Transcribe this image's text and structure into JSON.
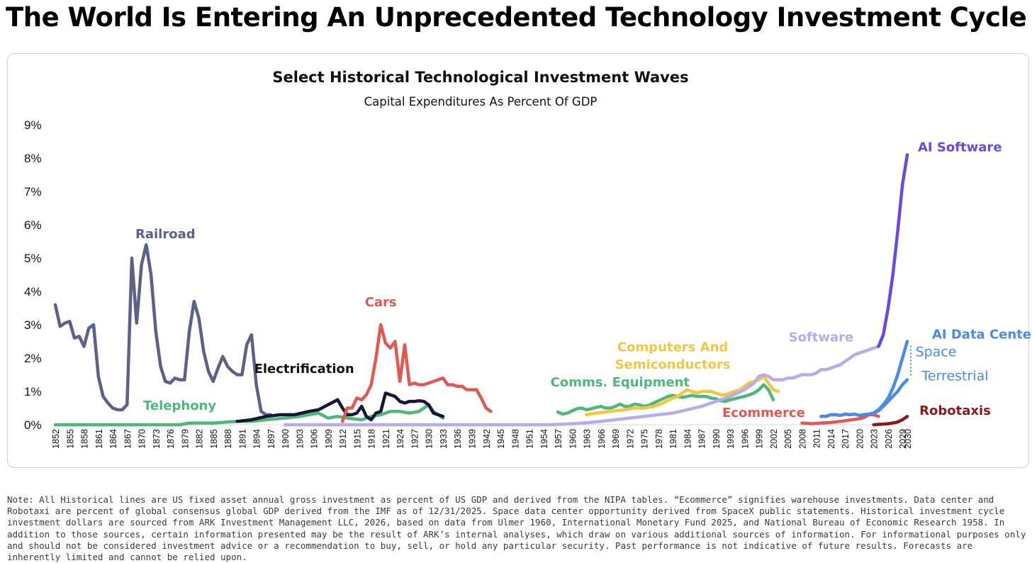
{
  "headline": "The World Is Entering An Unprecedented Technology Investment Cycle",
  "note": "Note: All Historical lines are US fixed asset annual gross investment as percent of US GDP and derived from the NIPA tables. “Ecommerce” signifies warehouse investments. Data center and Robotaxi are percent of global consensus global GDP derived from the IMF as of 12/31/2025. Space data center opportunity derived from SpaceX public statements. Historical investment cycle investment dollars are sourced from ARK Investment Management LLC, 2026, based on data from Ulmer 1960, International Monetary Fund 2025, and National Bureau of Economic Research 1958. In addition to those sources, certain information presented may be the result of ARK’s internal analyses, which draw on various additional sources of information. For informational purposes only and should not be considered investment advice or a recommendation to buy, sell, or hold any particular security. Past performance is not indicative of future results. Forecasts are inherently limited and cannot be relied upon.",
  "chart_data": {
    "type": "line",
    "title": "Select Historical Technological Investment Waves",
    "subtitle": "Capital Expenditures As Percent Of GDP",
    "xlabel": "",
    "ylabel": "",
    "xlim": [
      1852,
      2030
    ],
    "ylim": [
      0,
      9
    ],
    "y_unit": "%",
    "y_ticks": [
      0,
      1,
      2,
      3,
      4,
      5,
      6,
      7,
      8,
      9
    ],
    "x_ticks": [
      1852,
      1855,
      1858,
      1861,
      1864,
      1867,
      1870,
      1873,
      1876,
      1879,
      1882,
      1885,
      1888,
      1891,
      1894,
      1897,
      1900,
      1903,
      1906,
      1909,
      1912,
      1915,
      1918,
      1921,
      1924,
      1927,
      1930,
      1933,
      1936,
      1939,
      1942,
      1945,
      1948,
      1951,
      1954,
      1957,
      1960,
      1963,
      1966,
      1969,
      1972,
      1975,
      1978,
      1981,
      1984,
      1987,
      1990,
      1993,
      1996,
      1999,
      2002,
      2005,
      2008,
      2011,
      2014,
      2017,
      2020,
      2023,
      2026,
      2029,
      2030
    ],
    "grid": false,
    "legend": "none",
    "series": [
      {
        "name": "Railroad",
        "color": "#5b6188",
        "x": [
          1852,
          1853,
          1854,
          1855,
          1856,
          1857,
          1858,
          1859,
          1860,
          1861,
          1862,
          1863,
          1864,
          1865,
          1866,
          1867,
          1868,
          1869,
          1870,
          1871,
          1872,
          1873,
          1874,
          1875,
          1876,
          1877,
          1878,
          1879,
          1880,
          1881,
          1882,
          1883,
          1884,
          1885,
          1886,
          1887,
          1888,
          1889,
          1890,
          1891,
          1892,
          1893,
          1894,
          1895,
          1896,
          1897
        ],
        "values": [
          3.6,
          2.95,
          3.05,
          3.1,
          2.6,
          2.65,
          2.35,
          2.9,
          3.0,
          1.45,
          0.85,
          0.65,
          0.5,
          0.45,
          0.45,
          0.6,
          5.0,
          3.05,
          4.8,
          5.4,
          4.5,
          2.8,
          1.75,
          1.3,
          1.25,
          1.4,
          1.35,
          1.35,
          2.8,
          3.7,
          3.2,
          2.2,
          1.6,
          1.3,
          1.7,
          2.05,
          1.75,
          1.6,
          1.5,
          1.5,
          2.4,
          2.7,
          1.2,
          0.4,
          0.3,
          0.3
        ]
      },
      {
        "name": "Telephony",
        "color": "#4db87a",
        "x": [
          1852,
          1860,
          1870,
          1878,
          1880,
          1885,
          1890,
          1893,
          1896,
          1900,
          1903,
          1905,
          1907,
          1909,
          1911,
          1913,
          1916,
          1918,
          1920,
          1922,
          1924,
          1926,
          1928,
          1929,
          1930,
          1931,
          1932,
          1933
        ],
        "values": [
          0,
          0,
          0,
          0,
          0.05,
          0.05,
          0.1,
          0.1,
          0.15,
          0.2,
          0.25,
          0.3,
          0.35,
          0.2,
          0.25,
          0.2,
          0.15,
          0.25,
          0.3,
          0.4,
          0.4,
          0.35,
          0.4,
          0.5,
          0.6,
          0.4,
          0.3,
          0.2
        ]
      },
      {
        "name": "Electrification",
        "color": "#151535",
        "x": [
          1890,
          1893,
          1896,
          1899,
          1902,
          1905,
          1907,
          1909,
          1911,
          1912,
          1913,
          1914,
          1915,
          1916,
          1917,
          1918,
          1919,
          1920,
          1921,
          1922,
          1923,
          1924,
          1925,
          1926,
          1927,
          1928,
          1929,
          1930,
          1931,
          1932,
          1933
        ],
        "values": [
          0.1,
          0.15,
          0.25,
          0.3,
          0.3,
          0.4,
          0.45,
          0.6,
          0.75,
          0.5,
          0.3,
          0.3,
          0.35,
          0.55,
          0.25,
          0.15,
          0.35,
          0.4,
          0.95,
          0.9,
          0.85,
          0.7,
          0.65,
          0.7,
          0.7,
          0.72,
          0.7,
          0.6,
          0.35,
          0.3,
          0.25
        ]
      },
      {
        "name": "Cars",
        "color": "#e05a52",
        "x": [
          1912,
          1913,
          1914,
          1915,
          1916,
          1917,
          1918,
          1919,
          1920,
          1921,
          1922,
          1923,
          1924,
          1925,
          1926,
          1927,
          1928,
          1929,
          1930,
          1931,
          1932,
          1933,
          1934,
          1935,
          1936,
          1937,
          1938,
          1939,
          1940,
          1941,
          1942,
          1943
        ],
        "values": [
          0.1,
          0.5,
          0.5,
          0.8,
          0.75,
          0.9,
          1.2,
          2.0,
          3.0,
          2.45,
          2.3,
          2.5,
          1.3,
          2.4,
          1.2,
          1.25,
          1.2,
          1.2,
          1.25,
          1.3,
          1.35,
          1.4,
          1.2,
          1.2,
          1.15,
          1.15,
          1.05,
          1.05,
          1.05,
          0.8,
          0.5,
          0.4
        ]
      },
      {
        "name": "Comms. Equipment",
        "color": "#4db87a",
        "x": [
          1957,
          1958,
          1959,
          1960,
          1961,
          1962,
          1963,
          1964,
          1965,
          1966,
          1967,
          1968,
          1969,
          1970,
          1971,
          1972,
          1973,
          1974,
          1975,
          1976,
          1977,
          1978,
          1979,
          1980,
          1981,
          1982,
          1983,
          1984,
          1985,
          1986,
          1987,
          1988,
          1989,
          1990,
          1991,
          1992,
          1993,
          1994,
          1995,
          1996,
          1997,
          1998,
          1999,
          2000,
          2001,
          2002
        ],
        "values": [
          0.38,
          0.32,
          0.35,
          0.42,
          0.48,
          0.5,
          0.45,
          0.48,
          0.52,
          0.55,
          0.5,
          0.5,
          0.55,
          0.62,
          0.55,
          0.55,
          0.62,
          0.6,
          0.55,
          0.58,
          0.65,
          0.72,
          0.78,
          0.85,
          0.88,
          0.85,
          0.82,
          0.85,
          0.88,
          0.85,
          0.85,
          0.85,
          0.8,
          0.78,
          0.72,
          0.7,
          0.75,
          0.78,
          0.82,
          0.85,
          0.9,
          0.95,
          1.05,
          1.2,
          1.05,
          0.75
        ]
      },
      {
        "name": "Computers And Semiconductors",
        "color": "#f2c643",
        "x": [
          1963,
          1965,
          1967,
          1969,
          1971,
          1973,
          1975,
          1977,
          1979,
          1981,
          1982,
          1983,
          1984,
          1985,
          1986,
          1987,
          1988,
          1989,
          1990,
          1991,
          1992,
          1993,
          1994,
          1995,
          1996,
          1997,
          1998,
          1999,
          2000,
          2001,
          2002,
          2003
        ],
        "values": [
          0.3,
          0.35,
          0.38,
          0.42,
          0.45,
          0.5,
          0.5,
          0.55,
          0.65,
          0.8,
          0.85,
          0.95,
          1.05,
          1.0,
          0.95,
          1.0,
          1.0,
          1.0,
          0.95,
          0.9,
          0.9,
          0.95,
          1.0,
          1.05,
          1.15,
          1.25,
          1.3,
          1.35,
          1.45,
          1.25,
          1.05,
          1.0
        ]
      },
      {
        "name": "Software",
        "color": "#b7aaef",
        "x": [
          1900,
          1920,
          1940,
          1955,
          1960,
          1963,
          1966,
          1969,
          1972,
          1975,
          1978,
          1981,
          1984,
          1987,
          1990,
          1993,
          1996,
          1998,
          1999,
          2000,
          2001,
          2002,
          2003,
          2004,
          2005,
          2006,
          2007,
          2008,
          2009,
          2010,
          2011,
          2012,
          2013,
          2014,
          2015,
          2016,
          2017,
          2018,
          2019,
          2020,
          2021,
          2022,
          2023,
          2024
        ],
        "values": [
          0,
          0,
          0,
          0,
          0.03,
          0.06,
          0.1,
          0.15,
          0.2,
          0.25,
          0.3,
          0.35,
          0.45,
          0.55,
          0.7,
          0.85,
          1.05,
          1.25,
          1.45,
          1.5,
          1.45,
          1.35,
          1.35,
          1.35,
          1.4,
          1.4,
          1.45,
          1.5,
          1.5,
          1.5,
          1.55,
          1.65,
          1.65,
          1.7,
          1.75,
          1.8,
          1.9,
          2.0,
          2.1,
          2.15,
          2.2,
          2.25,
          2.3,
          2.35
        ]
      },
      {
        "name": "Ecommerce",
        "color": "#e05a52",
        "x": [
          2008,
          2009,
          2010,
          2011,
          2012,
          2013,
          2014,
          2015,
          2016,
          2017,
          2018,
          2019,
          2020,
          2021,
          2022,
          2023,
          2024
        ],
        "values": [
          0.05,
          0.04,
          0.03,
          0.04,
          0.05,
          0.06,
          0.07,
          0.08,
          0.1,
          0.12,
          0.14,
          0.16,
          0.18,
          0.22,
          0.3,
          0.3,
          0.25
        ]
      },
      {
        "name": "AI Software",
        "color": "#6a48e8",
        "x": [
          2024,
          2025,
          2026,
          2027,
          2028,
          2029,
          2030
        ],
        "values": [
          2.35,
          2.7,
          3.5,
          4.5,
          5.8,
          7.2,
          8.1
        ]
      },
      {
        "name": "AI Data Centers Space",
        "color": "#4a8ae8",
        "x": [
          2012,
          2013,
          2014,
          2015,
          2016,
          2017,
          2018,
          2019,
          2020,
          2021,
          2022,
          2023,
          2024,
          2025,
          2026,
          2027,
          2028,
          2029,
          2030
        ],
        "values": [
          0.25,
          0.25,
          0.3,
          0.3,
          0.28,
          0.32,
          0.3,
          0.32,
          0.28,
          0.3,
          0.32,
          0.35,
          0.45,
          0.6,
          0.8,
          1.1,
          1.5,
          2.0,
          2.5
        ]
      },
      {
        "name": "AI Data Centers Terrestrial",
        "color": "#4a8ae8",
        "x": [
          2012,
          2013,
          2014,
          2015,
          2016,
          2017,
          2018,
          2019,
          2020,
          2021,
          2022,
          2023,
          2024,
          2025,
          2026,
          2027,
          2028,
          2029,
          2030
        ],
        "values": [
          0.25,
          0.25,
          0.3,
          0.3,
          0.28,
          0.32,
          0.3,
          0.32,
          0.28,
          0.3,
          0.32,
          0.35,
          0.42,
          0.55,
          0.7,
          0.85,
          1.0,
          1.2,
          1.35
        ]
      },
      {
        "name": "Robotaxis",
        "color": "#8b1a1a",
        "x": [
          2023,
          2024,
          2025,
          2026,
          2027,
          2028,
          2029,
          2030
        ],
        "values": [
          0,
          0.01,
          0.02,
          0.03,
          0.05,
          0.08,
          0.15,
          0.25
        ]
      }
    ],
    "labels": [
      {
        "text": "Railroad",
        "color": "#5b6188",
        "at": [
          1875,
          5.6
        ]
      },
      {
        "text": "Telephony",
        "color": "#4db87a",
        "at": [
          1878,
          0.45
        ]
      },
      {
        "text": "Electrification",
        "color": "#111111",
        "at": [
          1904,
          1.55
        ]
      },
      {
        "text": "Cars",
        "color": "#e05a52",
        "at": [
          1920,
          3.55
        ]
      },
      {
        "text": "Comms. Equipment",
        "color": "#4db87a",
        "at": [
          1970,
          1.15
        ]
      },
      {
        "text": "Computers And",
        "color": "#f2c643",
        "at": [
          1981,
          2.2
        ]
      },
      {
        "text": "Semiconductors",
        "color": "#f2c643",
        "at": [
          1981,
          1.68
        ]
      },
      {
        "text": "Software",
        "color": "#b7aaef",
        "at": [
          2012,
          2.5
        ]
      },
      {
        "text": "Ecommerce",
        "color": "#e05a52",
        "at": [
          2000,
          0.23
        ]
      },
      {
        "text": "AI Software",
        "color": "#6a48e8",
        "at": [
          2041,
          8.2
        ]
      },
      {
        "text": "AI Data Centers",
        "color": "#4a8ae8",
        "at": [
          2047,
          2.58
        ]
      },
      {
        "text": "Space",
        "color": "#4a8ae8",
        "at": [
          2036,
          2.05
        ]
      },
      {
        "text": "Terrestrial",
        "color": "#4a8ae8",
        "at": [
          2040,
          1.33
        ]
      },
      {
        "text": "Robotaxis",
        "color": "#8b1a1a",
        "at": [
          2040,
          0.3
        ]
      }
    ]
  }
}
